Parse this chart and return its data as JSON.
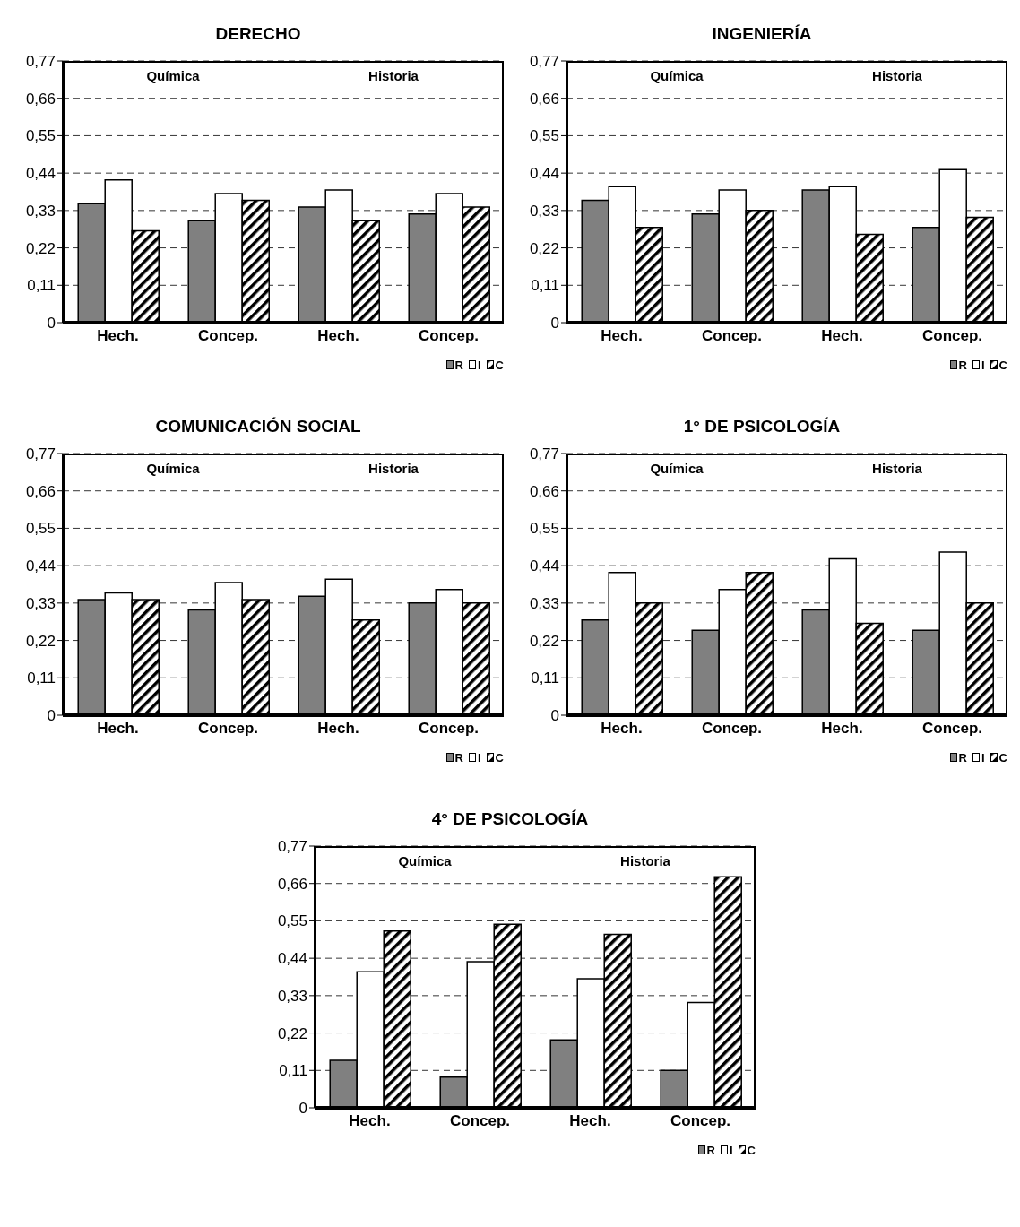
{
  "chart_data": [
    {
      "type": "bar",
      "title": "DERECHO",
      "categories": [
        "Hech.",
        "Concep.",
        "Hech.",
        "Concep."
      ],
      "annotations": [
        "Química",
        "Historia"
      ],
      "ylim": [
        0,
        0.77
      ],
      "yticks": [
        {
          "value": 0,
          "label": "0"
        },
        {
          "value": 0.11,
          "label": "0,11"
        },
        {
          "value": 0.22,
          "label": "0,22"
        },
        {
          "value": 0.33,
          "label": "0,33"
        },
        {
          "value": 0.44,
          "label": "0,44"
        },
        {
          "value": 0.55,
          "label": "0,55"
        },
        {
          "value": 0.66,
          "label": "0,66"
        },
        {
          "value": 0.77,
          "label": "0,77"
        }
      ],
      "grid": "y",
      "legend": "bottom right",
      "series": [
        {
          "name": "R",
          "color": "#808080",
          "values": [
            0.35,
            0.3,
            0.34,
            0.32
          ]
        },
        {
          "name": "I",
          "color": "#ffffff",
          "values": [
            0.42,
            0.38,
            0.39,
            0.38
          ]
        },
        {
          "name": "C",
          "color": "#000000",
          "values": [
            0.27,
            0.36,
            0.3,
            0.34
          ]
        }
      ]
    },
    {
      "type": "bar",
      "title": "INGENIERÍA",
      "categories": [
        "Hech.",
        "Concep.",
        "Hech.",
        "Concep."
      ],
      "annotations": [
        "Química",
        "Historia"
      ],
      "ylim": [
        0,
        0.77
      ],
      "yticks": [
        {
          "value": 0,
          "label": "0"
        },
        {
          "value": 0.11,
          "label": "0,11"
        },
        {
          "value": 0.22,
          "label": "0,22"
        },
        {
          "value": 0.33,
          "label": "0,33"
        },
        {
          "value": 0.44,
          "label": "0,44"
        },
        {
          "value": 0.55,
          "label": "0,55"
        },
        {
          "value": 0.66,
          "label": "0,66"
        },
        {
          "value": 0.77,
          "label": "0,77"
        }
      ],
      "grid": "y",
      "legend": "bottom right",
      "series": [
        {
          "name": "R",
          "color": "#808080",
          "values": [
            0.36,
            0.32,
            0.39,
            0.28
          ]
        },
        {
          "name": "I",
          "color": "#ffffff",
          "values": [
            0.4,
            0.39,
            0.4,
            0.45
          ]
        },
        {
          "name": "C",
          "color": "#000000",
          "values": [
            0.28,
            0.33,
            0.26,
            0.31
          ]
        }
      ]
    },
    {
      "type": "bar",
      "title": "COMUNICACIÓN SOCIAL",
      "categories": [
        "Hech.",
        "Concep.",
        "Hech.",
        "Concep."
      ],
      "annotations": [
        "Química",
        "Historia"
      ],
      "ylim": [
        0,
        0.77
      ],
      "yticks": [
        {
          "value": 0,
          "label": "0"
        },
        {
          "value": 0.11,
          "label": "0,11"
        },
        {
          "value": 0.22,
          "label": "0,22"
        },
        {
          "value": 0.33,
          "label": "0,33"
        },
        {
          "value": 0.44,
          "label": "0,44"
        },
        {
          "value": 0.55,
          "label": "0,55"
        },
        {
          "value": 0.66,
          "label": "0,66"
        },
        {
          "value": 0.77,
          "label": "0,77"
        }
      ],
      "grid": "y",
      "legend": "bottom right",
      "series": [
        {
          "name": "R",
          "color": "#808080",
          "values": [
            0.34,
            0.31,
            0.35,
            0.33
          ]
        },
        {
          "name": "I",
          "color": "#ffffff",
          "values": [
            0.36,
            0.39,
            0.4,
            0.37
          ]
        },
        {
          "name": "C",
          "color": "#000000",
          "values": [
            0.34,
            0.34,
            0.28,
            0.33
          ]
        }
      ]
    },
    {
      "type": "bar",
      "title": "1° DE PSICOLOGÍA",
      "categories": [
        "Hech.",
        "Concep.",
        "Hech.",
        "Concep."
      ],
      "annotations": [
        "Química",
        "Historia"
      ],
      "ylim": [
        0,
        0.77
      ],
      "yticks": [
        {
          "value": 0,
          "label": "0"
        },
        {
          "value": 0.11,
          "label": "0,11"
        },
        {
          "value": 0.22,
          "label": "0,22"
        },
        {
          "value": 0.33,
          "label": "0,33"
        },
        {
          "value": 0.44,
          "label": "0,44"
        },
        {
          "value": 0.55,
          "label": "0,55"
        },
        {
          "value": 0.66,
          "label": "0,66"
        },
        {
          "value": 0.77,
          "label": "0,77"
        }
      ],
      "grid": "y",
      "legend": "bottom right",
      "series": [
        {
          "name": "R",
          "color": "#808080",
          "values": [
            0.28,
            0.25,
            0.31,
            0.25
          ]
        },
        {
          "name": "I",
          "color": "#ffffff",
          "values": [
            0.42,
            0.37,
            0.46,
            0.48
          ]
        },
        {
          "name": "C",
          "color": "#000000",
          "values": [
            0.33,
            0.42,
            0.27,
            0.33
          ]
        }
      ]
    },
    {
      "type": "bar",
      "title": "4° DE PSICOLOGÍA",
      "categories": [
        "Hech.",
        "Concep.",
        "Hech.",
        "Concep."
      ],
      "annotations": [
        "Química",
        "Historia"
      ],
      "ylim": [
        0,
        0.77
      ],
      "yticks": [
        {
          "value": 0,
          "label": "0"
        },
        {
          "value": 0.11,
          "label": "0,11"
        },
        {
          "value": 0.22,
          "label": "0,22"
        },
        {
          "value": 0.33,
          "label": "0,33"
        },
        {
          "value": 0.44,
          "label": "0,44"
        },
        {
          "value": 0.55,
          "label": "0,55"
        },
        {
          "value": 0.66,
          "label": "0,66"
        },
        {
          "value": 0.77,
          "label": "0,77"
        }
      ],
      "grid": "y",
      "legend": "bottom right",
      "series": [
        {
          "name": "R",
          "color": "#808080",
          "values": [
            0.14,
            0.09,
            0.2,
            0.11
          ]
        },
        {
          "name": "I",
          "color": "#ffffff",
          "values": [
            0.4,
            0.43,
            0.38,
            0.31
          ]
        },
        {
          "name": "C",
          "color": "#000000",
          "values": [
            0.52,
            0.54,
            0.51,
            0.68
          ]
        }
      ]
    }
  ]
}
